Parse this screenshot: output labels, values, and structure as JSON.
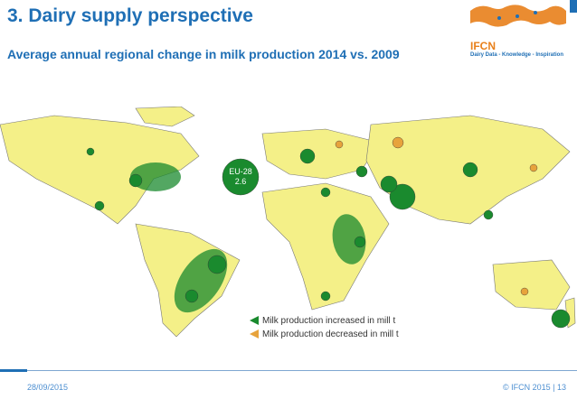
{
  "header": {
    "title": "3. Dairy supply perspective",
    "subtitle": "Average annual regional change in milk production 2014 vs. 2009"
  },
  "logo": {
    "name": "IFCN",
    "tagline": "Dairy Data - Knowledge - Inspiration"
  },
  "map": {
    "eu_label": "EU-28",
    "eu_value": "2.6"
  },
  "legend": {
    "increased": "Milk production increased in mill t",
    "decreased": "Milk production decreased in mill t"
  },
  "colors": {
    "land": "#f4f088",
    "ocean": "#ffffff",
    "increase": "#1a8a2e",
    "decrease": "#e7a33c",
    "brand_blue": "#1f6fb5",
    "brand_orange": "#e8801b"
  },
  "footer": {
    "date": "28/09/2015",
    "copyright": "© IFCN  2015 | 13"
  }
}
